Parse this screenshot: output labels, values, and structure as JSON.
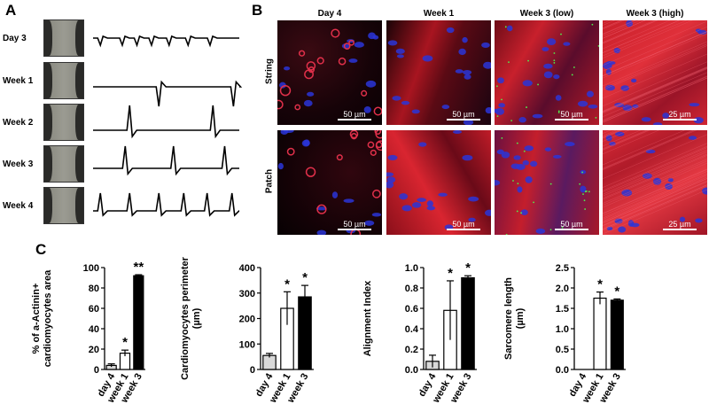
{
  "panelA": {
    "letter": "A",
    "rows": [
      "Day 3",
      "Week 1",
      "Week 2",
      "Week 3",
      "Week 4"
    ]
  },
  "panelB": {
    "letter": "B",
    "columns": [
      "Day 4",
      "Week 1",
      "Week 3 (low)",
      "Week 3 (high)"
    ],
    "rows": [
      "String",
      "Patch"
    ],
    "scales": [
      "50 µm",
      "50 µm",
      "50 µm",
      "25 µm"
    ]
  },
  "panelC": {
    "letter": "C"
  },
  "chart_data": [
    {
      "type": "bar",
      "categories": [
        "day 4",
        "week 1",
        "week 3"
      ],
      "values": [
        4,
        16,
        92
      ],
      "errors": [
        1.5,
        3,
        1
      ],
      "ylabel": "% of a-Actinin+ cardiomyocytes area",
      "ylim": [
        0,
        100
      ],
      "yticks": [
        "0",
        "20",
        "40",
        "60",
        "80",
        "100"
      ],
      "significance": [
        "",
        "*",
        "**"
      ],
      "colors": [
        "#d9d9d9",
        "#ffffff",
        "#000000"
      ]
    },
    {
      "type": "bar",
      "categories": [
        "day 4",
        "week 1",
        "week 3"
      ],
      "values": [
        55,
        240,
        285
      ],
      "errors": [
        8,
        65,
        45
      ],
      "ylabel": "Cardiomyocytes perimeter (µm)",
      "ylim": [
        0,
        400
      ],
      "yticks": [
        "0",
        "100",
        "200",
        "300",
        "400"
      ],
      "significance": [
        "",
        "*",
        "*"
      ],
      "colors": [
        "#d9d9d9",
        "#ffffff",
        "#000000"
      ]
    },
    {
      "type": "bar",
      "categories": [
        "day 4",
        "week 1",
        "week 3"
      ],
      "values": [
        0.08,
        0.58,
        0.9
      ],
      "errors": [
        0.06,
        0.29,
        0.02
      ],
      "ylabel": "Alignment Index",
      "ylim": [
        0,
        1
      ],
      "yticks": [
        "0.0",
        "0.2",
        "0.4",
        "0.6",
        "0.8",
        "1.0"
      ],
      "significance": [
        "",
        "*",
        "*"
      ],
      "colors": [
        "#d9d9d9",
        "#ffffff",
        "#000000"
      ]
    },
    {
      "type": "bar",
      "categories": [
        "day 4",
        "week 1",
        "week 3"
      ],
      "values": [
        0,
        1.75,
        1.7
      ],
      "errors": [
        0,
        0.15,
        0.03
      ],
      "ylabel": "Sarcomere length (µm)",
      "ylim": [
        0,
        2.5
      ],
      "yticks": [
        "0.0",
        "0.5",
        "1.0",
        "1.5",
        "2.0",
        "2.5"
      ],
      "significance": [
        "",
        "*",
        "*"
      ],
      "colors": [
        "#d9d9d9",
        "#ffffff",
        "#000000"
      ]
    }
  ]
}
